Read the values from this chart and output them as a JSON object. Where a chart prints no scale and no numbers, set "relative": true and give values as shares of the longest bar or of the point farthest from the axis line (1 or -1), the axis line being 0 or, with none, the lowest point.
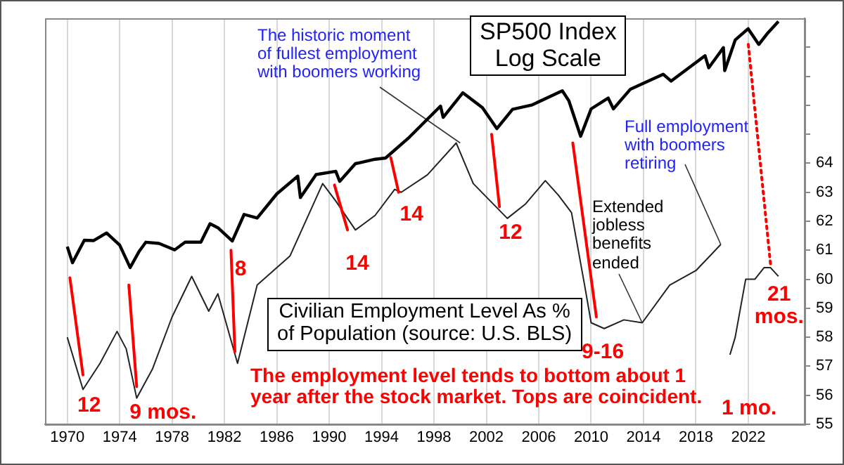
{
  "chart_data": [
    {
      "type": "line",
      "x": [
        1970.0,
        1971.2,
        1972.5,
        1973.8,
        1974.5,
        1975.3,
        1976.5,
        1978.0,
        1979.5,
        1980.8,
        1981.5,
        1983.0,
        1984.5,
        1987.0,
        1989.5,
        1990.5,
        1992.0,
        1993.5,
        1995.0,
        1995.5,
        1997.5,
        1999.7,
        2001.0,
        2003.6,
        2005.0,
        2006.5,
        2007.5,
        2008.5,
        2009.5,
        2010.0,
        2011.0,
        2012.5,
        2013.9,
        2016.0,
        2018.0,
        2019.9,
        2020.3,
        2020.6,
        2021.0,
        2021.8,
        2022.5,
        2023.2,
        2023.7,
        2024.3
      ],
      "values": [
        58.0,
        56.2,
        57.1,
        58.2,
        57.6,
        55.9,
        56.9,
        58.7,
        60.1,
        58.9,
        59.5,
        57.1,
        59.8,
        60.8,
        63.3,
        62.7,
        61.7,
        62.2,
        63.1,
        63.0,
        63.6,
        64.7,
        63.3,
        62.1,
        62.6,
        63.4,
        62.9,
        62.3,
        59.8,
        58.5,
        58.3,
        58.6,
        58.5,
        59.8,
        60.3,
        61.2,
        null,
        57.4,
        58.0,
        60.0,
        60.0,
        60.4,
        60.4,
        60.1
      ],
      "color": "#222222",
      "xlim": [
        1968.3,
        2026.3
      ],
      "xticks": [
        1970,
        1974,
        1978,
        1982,
        1986,
        1990,
        1994,
        1998,
        2002,
        2006,
        2010,
        2014,
        2018,
        2022
      ],
      "ylim": [
        55,
        69
      ],
      "yticks": [
        55,
        56,
        57,
        58,
        59,
        60,
        61,
        62,
        63,
        64,
        {
          "value": 65,
          "label": null
        },
        {
          "value": 66,
          "label": null
        },
        {
          "value": 67,
          "label": null
        },
        {
          "value": 68,
          "label": null
        }
      ],
      "grid": "x",
      "annotations": [
        {
          "text": "The historic moment\nof fullest employment\nwith boomers working",
          "x": 2000.0,
          "y": 64.7
        },
        {
          "text": "Full employment\nwith boomers\nretiring",
          "x": 2019.9,
          "y": 61.2
        },
        {
          "text": "Extended\njobless\nbenefits\nended",
          "x": 2013.9,
          "y": 58.5
        },
        "Civilian Employment Level As %\nof Population (source: U.S. BLS)",
        "The employment level tends to bottom about 1\nyear after the stock market. Tops are coincident.",
        {
          "text": "12",
          "x": 1971.2,
          "y": 56.2
        },
        {
          "text": "9 mos.",
          "x": 1975.3,
          "y": 55.9
        },
        {
          "text": "8",
          "x": 1983.0,
          "y": 57.1
        },
        {
          "text": "14",
          "x": 1992.0,
          "y": 61.7
        },
        {
          "text": "14",
          "x": 1995.5,
          "y": 63.0
        },
        {
          "text": "12",
          "x": 2003.6,
          "y": 62.1
        },
        {
          "text": "9-16",
          "x": 2011.0,
          "y": 58.3
        },
        "1 mo.",
        {
          "text": "21\nmos.",
          "x": 2024.3,
          "y": 60.1
        }
      ]
    },
    {
      "type": "line",
      "relative": true,
      "tick_labels": false,
      "x": [
        1970.0,
        1970.4,
        1971.3,
        1972.0,
        1973.0,
        1974.0,
        1974.8,
        1975.5,
        1976.0,
        1977.0,
        1978.2,
        1979.0,
        1980.2,
        1980.9,
        1981.5,
        1982.6,
        1983.5,
        1984.5,
        1986.0,
        1987.6,
        1987.8,
        1989.0,
        1990.5,
        1990.8,
        1992.0,
        1993.5,
        1994.3,
        1996.0,
        1998.5,
        1998.7,
        2000.2,
        2001.7,
        2002.8,
        2004.0,
        2005.5,
        2007.8,
        2008.3,
        2009.2,
        2010.0,
        2011.3,
        2011.7,
        2013.0,
        2015.5,
        2016.1,
        2018.7,
        2018.98,
        2020.1,
        2020.2,
        2021.0,
        2021.99,
        2022.8,
        2023.5,
        2024.3
      ],
      "values": [
        0.441,
        0.401,
        0.457,
        0.456,
        0.475,
        0.445,
        0.389,
        0.43,
        0.452,
        0.449,
        0.433,
        0.452,
        0.452,
        0.498,
        0.488,
        0.455,
        0.521,
        0.512,
        0.572,
        0.616,
        0.563,
        0.62,
        0.628,
        0.603,
        0.647,
        0.658,
        0.661,
        0.709,
        0.79,
        0.762,
        0.823,
        0.786,
        0.734,
        0.782,
        0.793,
        0.828,
        0.803,
        0.715,
        0.783,
        0.81,
        0.783,
        0.832,
        0.869,
        0.852,
        0.915,
        0.885,
        0.935,
        0.878,
        0.954,
        0.982,
        0.943,
        0.972,
        1.0
      ],
      "color": "#000000",
      "xlim": [
        1968.3,
        2026.3
      ],
      "xticks": [
        1970,
        1974,
        1978,
        1982,
        1986,
        1990,
        1994,
        1998,
        2002,
        2006,
        2010,
        2014,
        2018,
        2022
      ],
      "annotations": [
        "SP500 Index\nLog Scale"
      ]
    }
  ]
}
